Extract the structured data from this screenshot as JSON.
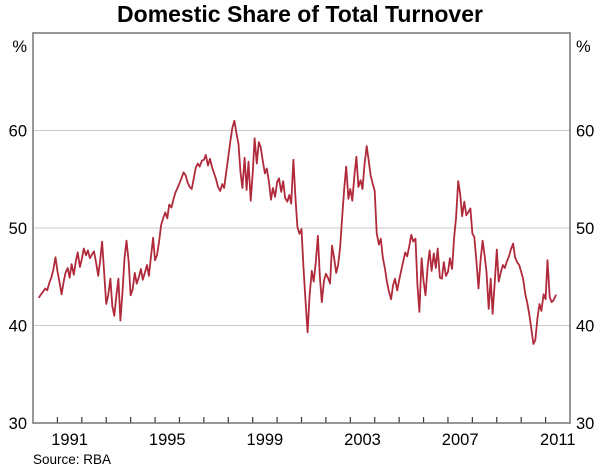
{
  "chart_data": {
    "type": "line",
    "title": "Domestic Share of Total Turnover",
    "source": "Source: RBA",
    "unit_left": "%",
    "unit_right": "%",
    "ylim": [
      30,
      70
    ],
    "yticks": [
      30,
      40,
      50,
      60
    ],
    "gridlines": [
      40,
      50,
      60
    ],
    "xlim": [
      1990,
      2012
    ],
    "xtick_years": [
      1990,
      1991,
      1992,
      1993,
      1994,
      1995,
      1996,
      1997,
      1998,
      1999,
      2000,
      2001,
      2002,
      2003,
      2004,
      2005,
      2006,
      2007,
      2008,
      2009,
      2010,
      2011
    ],
    "xtick_labels": [
      {
        "label": "1991",
        "x": 1991.5
      },
      {
        "label": "1995",
        "x": 1995.5
      },
      {
        "label": "1999",
        "x": 1999.5
      },
      {
        "label": "2003",
        "x": 2003.5
      },
      {
        "label": "2007",
        "x": 2007.5
      },
      {
        "label": "2011",
        "x": 2011.5
      }
    ],
    "grid_on": true,
    "legend": "none",
    "colors": {
      "line": "#b02a3b",
      "frame": "#7d7d7d",
      "grid": "#c9c9c9",
      "tick": "#3a3a3a",
      "text": "#000000"
    },
    "series": [
      {
        "name": "Domestic share of total turnover (per cent)",
        "points": [
          [
            1990.25,
            42.9
          ],
          [
            1990.33,
            43.2
          ],
          [
            1990.42,
            43.5
          ],
          [
            1990.5,
            43.8
          ],
          [
            1990.58,
            43.6
          ],
          [
            1990.67,
            44.4
          ],
          [
            1990.75,
            44.9
          ],
          [
            1990.83,
            45.7
          ],
          [
            1990.92,
            47.0
          ],
          [
            1991.0,
            45.6
          ],
          [
            1991.08,
            44.5
          ],
          [
            1991.17,
            43.2
          ],
          [
            1991.25,
            44.4
          ],
          [
            1991.33,
            45.4
          ],
          [
            1991.42,
            45.9
          ],
          [
            1991.5,
            44.9
          ],
          [
            1991.58,
            46.3
          ],
          [
            1991.67,
            45.2
          ],
          [
            1991.75,
            46.5
          ],
          [
            1991.83,
            47.5
          ],
          [
            1991.92,
            46.0
          ],
          [
            1992.0,
            46.8
          ],
          [
            1992.08,
            47.9
          ],
          [
            1992.17,
            47.2
          ],
          [
            1992.25,
            47.7
          ],
          [
            1992.33,
            46.9
          ],
          [
            1992.42,
            47.3
          ],
          [
            1992.5,
            47.6
          ],
          [
            1992.58,
            46.5
          ],
          [
            1992.67,
            45.1
          ],
          [
            1992.75,
            46.6
          ],
          [
            1992.83,
            48.6
          ],
          [
            1992.92,
            45.2
          ],
          [
            1993.0,
            42.2
          ],
          [
            1993.08,
            43.1
          ],
          [
            1993.17,
            44.8
          ],
          [
            1993.25,
            42.0
          ],
          [
            1993.33,
            41.0
          ],
          [
            1993.42,
            43.2
          ],
          [
            1993.5,
            44.8
          ],
          [
            1993.58,
            40.5
          ],
          [
            1993.67,
            43.6
          ],
          [
            1993.75,
            46.9
          ],
          [
            1993.83,
            48.7
          ],
          [
            1993.92,
            46.5
          ],
          [
            1994.0,
            43.1
          ],
          [
            1994.08,
            43.7
          ],
          [
            1994.17,
            45.4
          ],
          [
            1994.25,
            44.3
          ],
          [
            1994.33,
            44.9
          ],
          [
            1994.42,
            45.8
          ],
          [
            1994.5,
            44.7
          ],
          [
            1994.58,
            45.4
          ],
          [
            1994.67,
            46.2
          ],
          [
            1994.75,
            45.1
          ],
          [
            1994.83,
            47.0
          ],
          [
            1994.92,
            49.0
          ],
          [
            1995.0,
            46.7
          ],
          [
            1995.08,
            47.2
          ],
          [
            1995.17,
            48.7
          ],
          [
            1995.25,
            50.3
          ],
          [
            1995.33,
            51.0
          ],
          [
            1995.42,
            51.6
          ],
          [
            1995.5,
            51.0
          ],
          [
            1995.58,
            52.4
          ],
          [
            1995.67,
            52.1
          ],
          [
            1995.75,
            52.9
          ],
          [
            1995.83,
            53.6
          ],
          [
            1995.92,
            54.1
          ],
          [
            1996.0,
            54.6
          ],
          [
            1996.08,
            55.1
          ],
          [
            1996.17,
            55.7
          ],
          [
            1996.25,
            55.4
          ],
          [
            1996.33,
            54.7
          ],
          [
            1996.42,
            54.2
          ],
          [
            1996.5,
            54.0
          ],
          [
            1996.58,
            55.0
          ],
          [
            1996.67,
            56.2
          ],
          [
            1996.75,
            56.6
          ],
          [
            1996.83,
            56.3
          ],
          [
            1996.92,
            56.9
          ],
          [
            1997.0,
            57.0
          ],
          [
            1997.08,
            57.5
          ],
          [
            1997.17,
            56.4
          ],
          [
            1997.25,
            57.1
          ],
          [
            1997.33,
            56.3
          ],
          [
            1997.42,
            55.6
          ],
          [
            1997.5,
            55.0
          ],
          [
            1997.58,
            54.2
          ],
          [
            1997.67,
            53.8
          ],
          [
            1997.75,
            54.5
          ],
          [
            1997.83,
            54.1
          ],
          [
            1997.92,
            55.8
          ],
          [
            1998.0,
            57.3
          ],
          [
            1998.08,
            58.8
          ],
          [
            1998.17,
            60.3
          ],
          [
            1998.25,
            61.0
          ],
          [
            1998.33,
            59.8
          ],
          [
            1998.42,
            58.6
          ],
          [
            1998.5,
            55.7
          ],
          [
            1998.58,
            54.1
          ],
          [
            1998.67,
            57.2
          ],
          [
            1998.75,
            53.9
          ],
          [
            1998.83,
            56.8
          ],
          [
            1998.92,
            52.8
          ],
          [
            1999.0,
            55.6
          ],
          [
            1999.08,
            59.2
          ],
          [
            1999.17,
            56.6
          ],
          [
            1999.25,
            58.8
          ],
          [
            1999.33,
            58.3
          ],
          [
            1999.42,
            56.8
          ],
          [
            1999.5,
            55.6
          ],
          [
            1999.58,
            56.1
          ],
          [
            1999.67,
            54.7
          ],
          [
            1999.75,
            52.9
          ],
          [
            1999.83,
            54.1
          ],
          [
            1999.92,
            53.2
          ],
          [
            2000.0,
            54.7
          ],
          [
            2000.08,
            55.1
          ],
          [
            2000.17,
            53.7
          ],
          [
            2000.25,
            54.8
          ],
          [
            2000.33,
            53.1
          ],
          [
            2000.42,
            52.7
          ],
          [
            2000.5,
            53.4
          ],
          [
            2000.58,
            52.5
          ],
          [
            2000.67,
            57.0
          ],
          [
            2000.75,
            53.2
          ],
          [
            2000.83,
            50.1
          ],
          [
            2000.92,
            49.4
          ],
          [
            2001.0,
            49.9
          ],
          [
            2001.08,
            45.9
          ],
          [
            2001.17,
            42.4
          ],
          [
            2001.25,
            39.3
          ],
          [
            2001.33,
            43.1
          ],
          [
            2001.42,
            45.6
          ],
          [
            2001.5,
            44.5
          ],
          [
            2001.58,
            46.4
          ],
          [
            2001.67,
            49.2
          ],
          [
            2001.75,
            45.1
          ],
          [
            2001.83,
            42.4
          ],
          [
            2001.92,
            44.6
          ],
          [
            2002.0,
            45.3
          ],
          [
            2002.08,
            44.9
          ],
          [
            2002.17,
            44.3
          ],
          [
            2002.25,
            48.2
          ],
          [
            2002.33,
            47.0
          ],
          [
            2002.42,
            45.4
          ],
          [
            2002.5,
            46.2
          ],
          [
            2002.58,
            48.0
          ],
          [
            2002.67,
            51.3
          ],
          [
            2002.75,
            54.0
          ],
          [
            2002.83,
            56.3
          ],
          [
            2002.92,
            53.0
          ],
          [
            2003.0,
            54.0
          ],
          [
            2003.08,
            52.8
          ],
          [
            2003.17,
            55.5
          ],
          [
            2003.25,
            57.3
          ],
          [
            2003.33,
            54.2
          ],
          [
            2003.42,
            54.9
          ],
          [
            2003.5,
            54.0
          ],
          [
            2003.58,
            56.5
          ],
          [
            2003.67,
            58.4
          ],
          [
            2003.75,
            57.0
          ],
          [
            2003.83,
            55.4
          ],
          [
            2003.92,
            54.5
          ],
          [
            2004.0,
            53.8
          ],
          [
            2004.08,
            49.5
          ],
          [
            2004.17,
            48.3
          ],
          [
            2004.25,
            48.9
          ],
          [
            2004.33,
            47.0
          ],
          [
            2004.42,
            45.8
          ],
          [
            2004.5,
            44.5
          ],
          [
            2004.58,
            43.5
          ],
          [
            2004.67,
            42.7
          ],
          [
            2004.75,
            44.1
          ],
          [
            2004.83,
            44.8
          ],
          [
            2004.92,
            43.6
          ],
          [
            2005.0,
            44.6
          ],
          [
            2005.08,
            45.6
          ],
          [
            2005.17,
            46.6
          ],
          [
            2005.25,
            47.5
          ],
          [
            2005.33,
            47.1
          ],
          [
            2005.42,
            48.2
          ],
          [
            2005.5,
            49.3
          ],
          [
            2005.58,
            48.6
          ],
          [
            2005.67,
            48.9
          ],
          [
            2005.75,
            44.2
          ],
          [
            2005.83,
            41.4
          ],
          [
            2005.92,
            46.9
          ],
          [
            2006.0,
            44.6
          ],
          [
            2006.08,
            43.1
          ],
          [
            2006.17,
            46.1
          ],
          [
            2006.25,
            47.7
          ],
          [
            2006.33,
            45.6
          ],
          [
            2006.42,
            47.4
          ],
          [
            2006.5,
            45.9
          ],
          [
            2006.58,
            47.9
          ],
          [
            2006.67,
            44.9
          ],
          [
            2006.75,
            44.8
          ],
          [
            2006.83,
            46.5
          ],
          [
            2006.92,
            45.1
          ],
          [
            2007.0,
            45.5
          ],
          [
            2007.08,
            46.9
          ],
          [
            2007.17,
            45.8
          ],
          [
            2007.25,
            49.0
          ],
          [
            2007.33,
            51.0
          ],
          [
            2007.42,
            54.8
          ],
          [
            2007.5,
            53.5
          ],
          [
            2007.58,
            51.2
          ],
          [
            2007.67,
            52.7
          ],
          [
            2007.75,
            51.3
          ],
          [
            2007.83,
            51.6
          ],
          [
            2007.92,
            52.0
          ],
          [
            2008.0,
            49.4
          ],
          [
            2008.08,
            49.1
          ],
          [
            2008.17,
            46.5
          ],
          [
            2008.25,
            43.8
          ],
          [
            2008.33,
            46.5
          ],
          [
            2008.42,
            48.7
          ],
          [
            2008.5,
            47.2
          ],
          [
            2008.58,
            45.5
          ],
          [
            2008.67,
            41.7
          ],
          [
            2008.75,
            44.8
          ],
          [
            2008.83,
            41.2
          ],
          [
            2008.92,
            44.5
          ],
          [
            2009.0,
            47.8
          ],
          [
            2009.08,
            44.5
          ],
          [
            2009.17,
            45.5
          ],
          [
            2009.25,
            46.2
          ],
          [
            2009.33,
            45.9
          ],
          [
            2009.42,
            46.6
          ],
          [
            2009.5,
            47.1
          ],
          [
            2009.58,
            47.8
          ],
          [
            2009.67,
            48.4
          ],
          [
            2009.75,
            47.0
          ],
          [
            2009.83,
            46.5
          ],
          [
            2009.92,
            46.2
          ],
          [
            2010.0,
            45.5
          ],
          [
            2010.08,
            44.8
          ],
          [
            2010.17,
            43.2
          ],
          [
            2010.25,
            42.3
          ],
          [
            2010.33,
            41.2
          ],
          [
            2010.42,
            39.6
          ],
          [
            2010.5,
            38.1
          ],
          [
            2010.58,
            38.5
          ],
          [
            2010.67,
            40.8
          ],
          [
            2010.75,
            42.2
          ],
          [
            2010.83,
            41.5
          ],
          [
            2010.92,
            43.2
          ],
          [
            2011.0,
            42.7
          ],
          [
            2011.08,
            46.7
          ],
          [
            2011.17,
            42.9
          ],
          [
            2011.25,
            42.4
          ],
          [
            2011.33,
            42.6
          ],
          [
            2011.42,
            43.1
          ]
        ]
      }
    ]
  }
}
